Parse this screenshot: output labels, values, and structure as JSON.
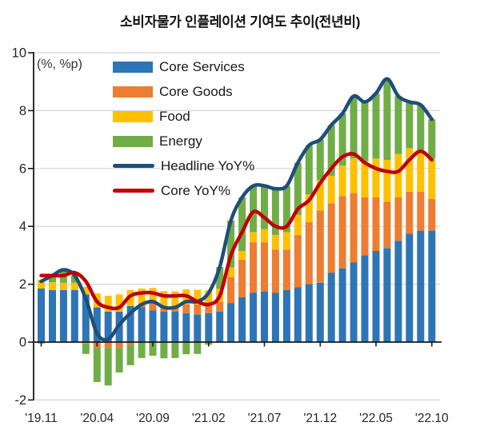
{
  "title": "소비자물가 인플레이션 기여도 추이(전년비)",
  "unit_label": "(%, %p)",
  "colors": {
    "core_services": "#2E75B6",
    "core_goods": "#ED7D31",
    "food": "#FFC000",
    "energy": "#70AD47",
    "headline_line": "#1F4E79",
    "core_line": "#C00000",
    "gridline": "#D6D6D6",
    "axis": "#1A1A1A",
    "text": "#262626",
    "background": "#FFFFFF"
  },
  "legend": [
    {
      "label": "Core Services",
      "color": "#2E75B6",
      "type": "bar"
    },
    {
      "label": "Core Goods",
      "color": "#ED7D31",
      "type": "bar"
    },
    {
      "label": "Food",
      "color": "#FFC000",
      "type": "bar"
    },
    {
      "label": "Energy",
      "color": "#70AD47",
      "type": "bar"
    },
    {
      "label": "Headline YoY%",
      "color": "#1F4E79",
      "type": "line"
    },
    {
      "label": "Core YoY%",
      "color": "#C00000",
      "type": "line"
    }
  ],
  "chart_data": {
    "type": "bar",
    "subtype": "stacked-contribution-bars-with-lines",
    "x_months": [
      "2019.11",
      "2019.12",
      "2020.01",
      "2020.02",
      "2020.03",
      "2020.04",
      "2020.05",
      "2020.06",
      "2020.07",
      "2020.08",
      "2020.09",
      "2020.10",
      "2020.11",
      "2020.12",
      "2021.01",
      "2021.02",
      "2021.03",
      "2021.04",
      "2021.05",
      "2021.06",
      "2021.07",
      "2021.08",
      "2021.09",
      "2021.10",
      "2021.11",
      "2021.12",
      "2022.01",
      "2022.02",
      "2022.03",
      "2022.04",
      "2022.05",
      "2022.06",
      "2022.07",
      "2022.08",
      "2022.09",
      "2022.10"
    ],
    "x_tick_labels": [
      "'19.11",
      "'20.04",
      "'20.09",
      "'21.02",
      "'21.07",
      "'21.12",
      "'22.05",
      "'22.10"
    ],
    "x_tick_indices": [
      0,
      5,
      10,
      15,
      20,
      25,
      30,
      35
    ],
    "y_ticks": [
      10,
      8,
      6,
      4,
      2,
      0,
      -2
    ],
    "ylim": [
      -2,
      10
    ],
    "grid": true,
    "legend_position": "top-left-inside",
    "series": [
      {
        "name": "Core Services",
        "role": "bar",
        "color": "#2E75B6",
        "values": [
          1.85,
          1.8,
          1.8,
          1.8,
          1.65,
          1.2,
          1.05,
          1.05,
          1.25,
          1.2,
          1.1,
          1.05,
          1.05,
          1.0,
          0.95,
          1.0,
          1.05,
          1.35,
          1.55,
          1.7,
          1.75,
          1.7,
          1.8,
          1.9,
          2.0,
          2.05,
          2.4,
          2.55,
          2.75,
          3.0,
          3.15,
          3.25,
          3.5,
          3.75,
          3.85,
          3.85
        ]
      },
      {
        "name": "Core Goods",
        "role": "bar",
        "color": "#ED7D31",
        "values": [
          0.0,
          0.0,
          0.0,
          0.0,
          -0.05,
          -0.2,
          -0.2,
          -0.2,
          -0.1,
          0.1,
          0.25,
          0.2,
          0.2,
          0.3,
          0.35,
          0.3,
          0.35,
          0.9,
          1.3,
          1.75,
          1.7,
          1.5,
          1.4,
          1.8,
          2.15,
          2.5,
          2.4,
          2.5,
          2.4,
          2.0,
          1.85,
          1.6,
          1.5,
          1.45,
          1.35,
          1.1
        ]
      },
      {
        "name": "Food",
        "role": "bar",
        "color": "#FFC000",
        "values": [
          0.3,
          0.27,
          0.25,
          0.25,
          0.26,
          0.48,
          0.55,
          0.6,
          0.55,
          0.55,
          0.52,
          0.51,
          0.5,
          0.52,
          0.51,
          0.49,
          0.45,
          0.33,
          0.3,
          0.35,
          0.45,
          0.5,
          0.6,
          0.7,
          0.95,
          1.05,
          0.95,
          1.05,
          1.2,
          1.25,
          1.35,
          1.45,
          1.5,
          1.5,
          1.45,
          1.4
        ]
      },
      {
        "name": "Energy",
        "role": "bar",
        "color": "#70AD47",
        "values": [
          -0.05,
          0.23,
          0.45,
          0.25,
          -0.36,
          -1.18,
          -1.3,
          -0.85,
          -0.7,
          -0.55,
          -0.47,
          -0.56,
          -0.55,
          -0.42,
          -0.41,
          -0.09,
          0.75,
          1.62,
          1.85,
          1.6,
          1.5,
          1.6,
          1.6,
          1.8,
          1.7,
          1.4,
          1.75,
          1.8,
          2.15,
          2.05,
          2.25,
          2.8,
          2.0,
          1.6,
          1.55,
          1.35
        ]
      },
      {
        "name": "Headline YoY%",
        "role": "line",
        "color": "#1F4E79",
        "values": [
          2.1,
          2.3,
          2.5,
          2.3,
          1.5,
          0.3,
          0.1,
          0.6,
          1.0,
          1.3,
          1.4,
          1.2,
          1.2,
          1.4,
          1.4,
          1.7,
          2.6,
          4.2,
          5.0,
          5.4,
          5.4,
          5.3,
          5.4,
          6.2,
          6.8,
          7.0,
          7.5,
          7.9,
          8.5,
          8.3,
          8.6,
          9.1,
          8.5,
          8.3,
          8.2,
          7.7
        ]
      },
      {
        "name": "Core YoY%",
        "role": "line",
        "color": "#C00000",
        "values": [
          2.3,
          2.3,
          2.3,
          2.4,
          2.1,
          1.4,
          1.2,
          1.2,
          1.6,
          1.7,
          1.7,
          1.6,
          1.6,
          1.6,
          1.4,
          1.3,
          1.6,
          3.0,
          3.8,
          4.5,
          4.3,
          4.0,
          4.0,
          4.6,
          4.9,
          5.5,
          6.0,
          6.4,
          6.5,
          6.2,
          6.0,
          5.9,
          5.9,
          6.3,
          6.6,
          6.3
        ]
      }
    ]
  }
}
